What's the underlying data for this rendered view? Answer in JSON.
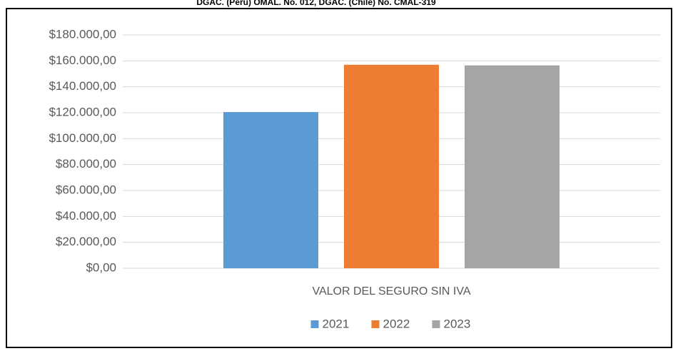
{
  "chart_data": {
    "type": "bar",
    "title": "DGAC. (Peru) OMAL. No. 012, DGAC. (Chile) No. CMAL-319",
    "categories": [
      "VALOR DEL SEGURO SIN IVA"
    ],
    "series": [
      {
        "name": "2021",
        "color": "#5b9bd5",
        "values": [
          120500
        ]
      },
      {
        "name": "2022",
        "color": "#ed7d31",
        "values": [
          157000
        ]
      },
      {
        "name": "2023",
        "color": "#a5a5a5",
        "values": [
          156500
        ]
      }
    ],
    "ylim": [
      0,
      180000
    ],
    "yticks": [
      {
        "value": 0,
        "label": "$0,00"
      },
      {
        "value": 20000,
        "label": "$20.000,00"
      },
      {
        "value": 40000,
        "label": "$40.000,00"
      },
      {
        "value": 60000,
        "label": "$60.000,00"
      },
      {
        "value": 80000,
        "label": "$80.000,00"
      },
      {
        "value": 100000,
        "label": "$100.000,00"
      },
      {
        "value": 120000,
        "label": "$120.000,00"
      },
      {
        "value": 140000,
        "label": "$140.000,00"
      },
      {
        "value": 160000,
        "label": "$160.000,00"
      },
      {
        "value": 180000,
        "label": "$180.000,00"
      }
    ],
    "grid": true,
    "legend": "bottom"
  }
}
